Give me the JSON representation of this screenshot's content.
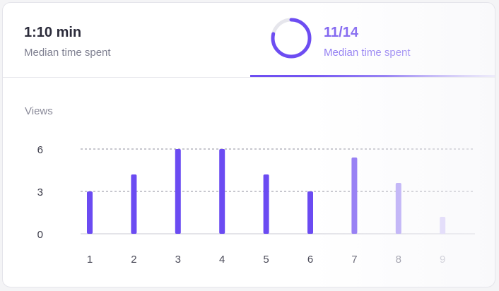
{
  "tabs": {
    "left": {
      "value": "1:10 min",
      "label": "Median time spent"
    },
    "right": {
      "value": "11/14",
      "label": "Median time spent",
      "progress": 0.786
    }
  },
  "colors": {
    "accent": "#6d4df2",
    "ring_track": "#e6e6ec"
  },
  "chart_data": {
    "type": "bar",
    "ylabel": "Views",
    "categories": [
      "1",
      "2",
      "3",
      "4",
      "5",
      "6",
      "7",
      "8",
      "9"
    ],
    "values": [
      3,
      4.2,
      6,
      6,
      4.2,
      3,
      5.4,
      3.6,
      1.2
    ],
    "ylim": [
      0,
      6
    ],
    "yticks": [
      "0",
      "3",
      "6"
    ],
    "grid": true
  }
}
